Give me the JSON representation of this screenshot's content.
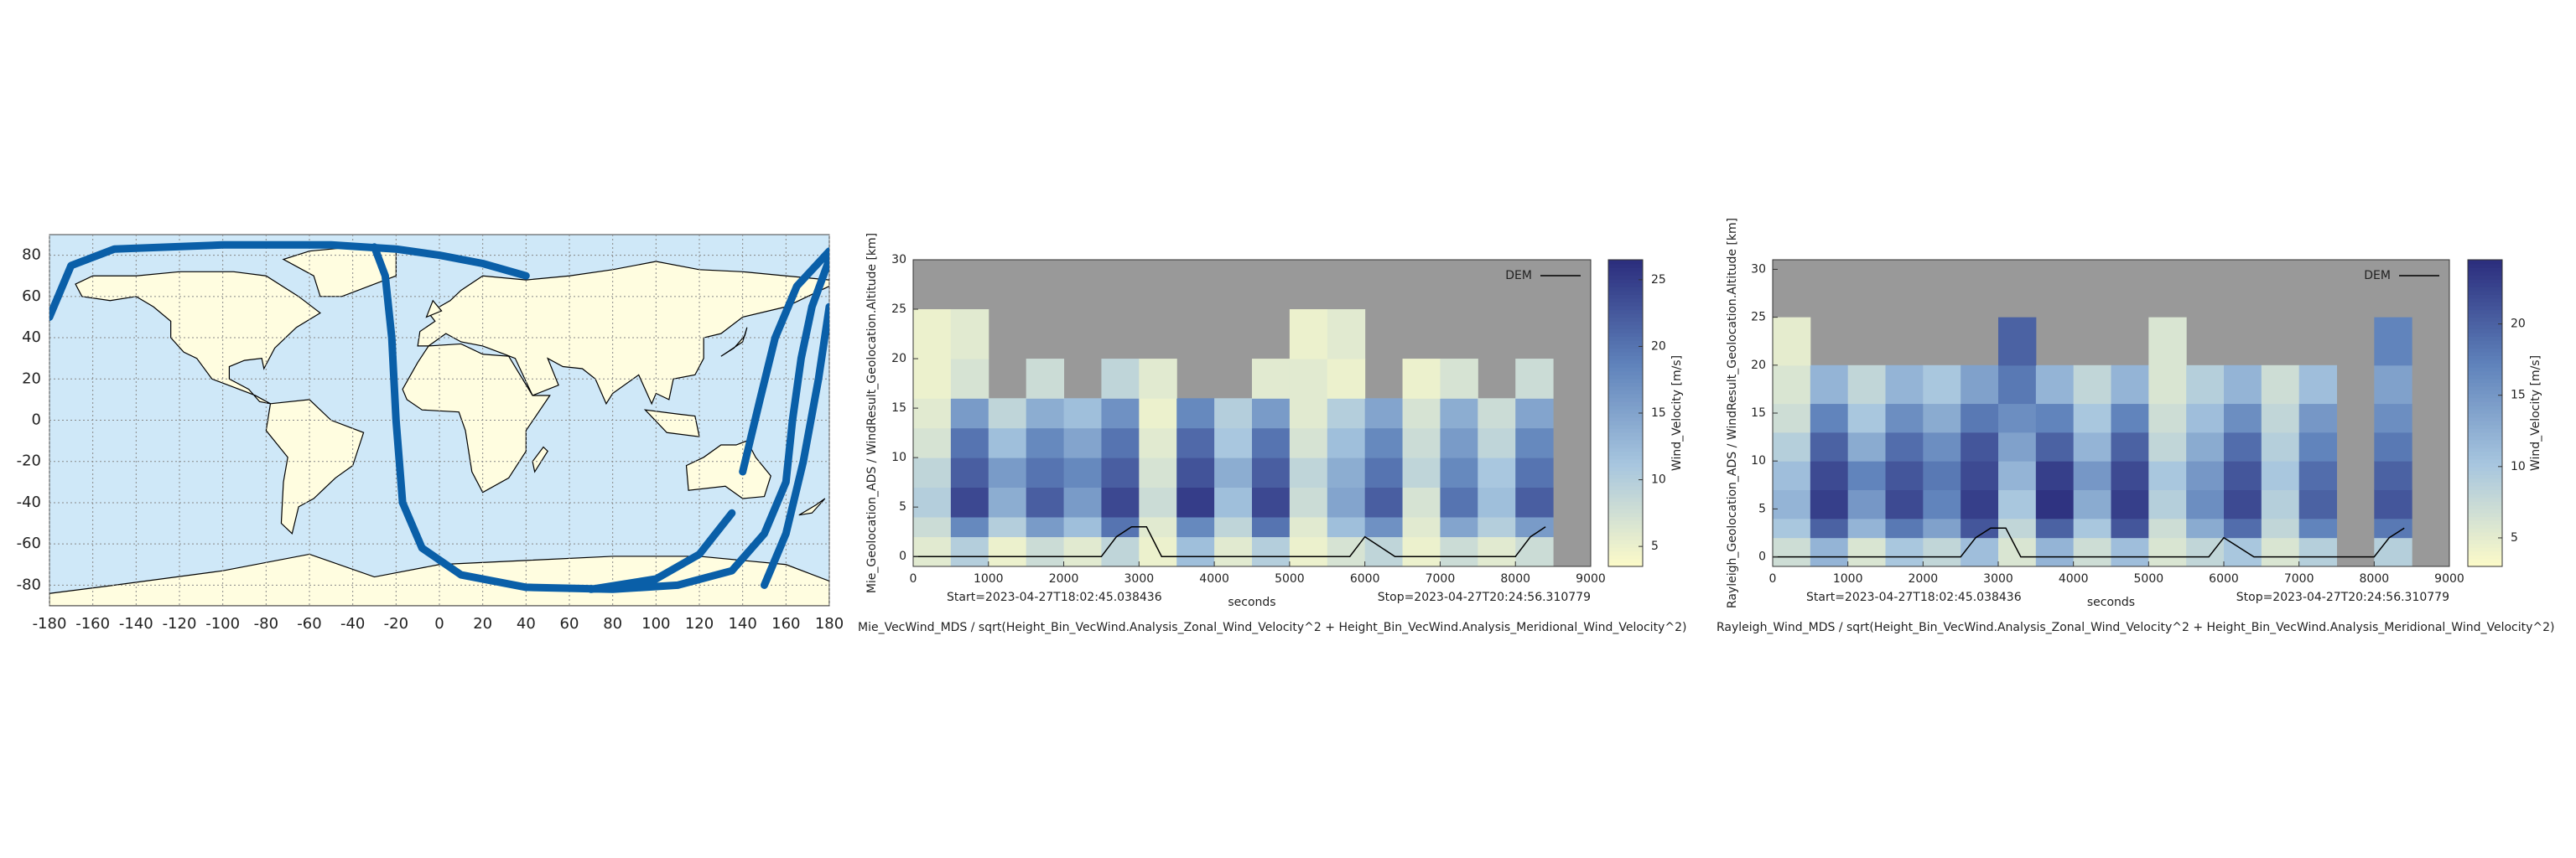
{
  "chart_data": [
    {
      "type": "map",
      "x": [
        -180,
        -170,
        -150,
        -100,
        -50,
        -20,
        0,
        20,
        40,
        null,
        -30,
        -25,
        -22,
        -20,
        -17,
        -8,
        10,
        40,
        80,
        110,
        135,
        150,
        160,
        163,
        167,
        172,
        180,
        null,
        135,
        120,
        100,
        70,
        null,
        140,
        148,
        155,
        165,
        180,
        null,
        180,
        175,
        168,
        160,
        150
      ],
      "values": [
        50,
        75,
        83,
        85,
        85,
        83,
        80,
        76,
        70,
        null,
        84,
        70,
        40,
        0,
        -40,
        -62,
        -75,
        -81,
        -82,
        -80,
        -73,
        -55,
        -30,
        0,
        30,
        55,
        78,
        null,
        -45,
        -65,
        -77,
        -82,
        null,
        -25,
        10,
        40,
        65,
        82,
        null,
        55,
        20,
        -20,
        -55,
        -80
      ],
      "color": "#0a5fa8",
      "xlim": [
        -180,
        180
      ],
      "ylim": [
        -90,
        90
      ],
      "xticks": [
        -180,
        -160,
        -140,
        -120,
        -100,
        -80,
        -60,
        -40,
        -20,
        0,
        20,
        40,
        60,
        80,
        100,
        120,
        140,
        160,
        180
      ],
      "yticks": [
        -80,
        -60,
        -40,
        -20,
        0,
        20,
        40,
        60,
        80
      ],
      "grid": true
    },
    {
      "type": "heatmap",
      "title": "Mie_VecWind_MDS / sqrt(Height_Bin_VecWind.Analysis_Zonal_Wind_Velocity^2 + Height_Bin_VecWind.Analysis_Meridional_Wind_Velocity^2)",
      "ylabel": "Mie_Geolocation_ADS / WindResult_Geolocation.Altitude [km]",
      "xlabel": "seconds",
      "start": "Start=2023-04-27T18:02:45.038436",
      "stop": "Stop=2023-04-27T20:24:56.310779",
      "colorbar_label": "Wind_Velocity [m/s]",
      "x": [
        0,
        500,
        1000,
        1500,
        2000,
        2500,
        3000,
        3500,
        4000,
        4500,
        5000,
        5500,
        6000,
        6500,
        7000,
        7500,
        8000,
        8500
      ],
      "y": [
        -1,
        2,
        4,
        7,
        10,
        13,
        16,
        20,
        25
      ],
      "values": [
        [
          6,
          10,
          5,
          8,
          6,
          9,
          5,
          12,
          6,
          10,
          5,
          7,
          9,
          5,
          8,
          6,
          8
        ],
        [
          8,
          18,
          10,
          16,
          12,
          20,
          6,
          18,
          9,
          20,
          6,
          12,
          17,
          6,
          15,
          10,
          16
        ],
        [
          10,
          24,
          14,
          22,
          16,
          24,
          8,
          25,
          12,
          24,
          8,
          15,
          22,
          7,
          20,
          12,
          22
        ],
        [
          9,
          22,
          16,
          20,
          18,
          22,
          7,
          23,
          14,
          22,
          9,
          14,
          20,
          9,
          18,
          11,
          20
        ],
        [
          7,
          20,
          12,
          18,
          15,
          20,
          6,
          21,
          11,
          20,
          7,
          12,
          18,
          8,
          16,
          9,
          18
        ],
        [
          6,
          16,
          9,
          14,
          12,
          17,
          5,
          18,
          10,
          16,
          6,
          10,
          15,
          7,
          14,
          8,
          15
        ],
        [
          5,
          7,
          null,
          8,
          null,
          9,
          6,
          null,
          null,
          6,
          6,
          5,
          null,
          5,
          7,
          null,
          8
        ],
        [
          5,
          6,
          null,
          null,
          null,
          null,
          null,
          null,
          null,
          null,
          5,
          6,
          null,
          null,
          null,
          null,
          null
        ]
      ],
      "xlim": [
        0,
        9000
      ],
      "ylim": [
        -1,
        30
      ],
      "xticks": [
        0,
        1000,
        2000,
        3000,
        4000,
        5000,
        6000,
        7000,
        8000,
        9000
      ],
      "yticks": [
        0,
        5,
        10,
        15,
        20,
        25,
        30
      ],
      "clim": [
        3.5,
        26.5
      ],
      "cticks": [
        5,
        10,
        15,
        20,
        25
      ],
      "colormap": [
        "#fdfbc8",
        "#a7c6df",
        "#5e81ba",
        "#2b2d7d"
      ],
      "nodata_color": "#999999",
      "dem": {
        "name": "DEM",
        "color": "#000000",
        "x": [
          0,
          1000,
          2500,
          2700,
          2900,
          3100,
          3300,
          5800,
          6000,
          6200,
          6400,
          7600,
          8000,
          8200,
          8400
        ],
        "values": [
          0,
          0,
          0,
          2,
          3,
          3,
          0,
          0,
          2,
          1,
          0,
          0,
          0,
          2,
          3
        ]
      }
    },
    {
      "type": "heatmap",
      "title": "Rayleigh_Wind_MDS / sqrt(Height_Bin_VecWind.Analysis_Zonal_Wind_Velocity^2 + Height_Bin_VecWind.Analysis_Meridional_Wind_Velocity^2)",
      "ylabel": "Rayleigh_Geolocation_ADS / WindResult_Geolocation.Altitude [km]",
      "xlabel": "seconds",
      "start": "Start=2023-04-27T18:02:45.038436",
      "stop": "Stop=2023-04-27T20:24:56.310779",
      "colorbar_label": "Wind_Velocity [m/s]",
      "x": [
        0,
        500,
        1000,
        1500,
        2000,
        2500,
        3000,
        3500,
        4000,
        4500,
        5000,
        5500,
        6000,
        6500,
        7000,
        7500,
        8000,
        8500
      ],
      "y": [
        -1,
        2,
        4,
        7,
        10,
        13,
        16,
        20,
        25
      ],
      "values": [
        [
          7,
          12,
          6,
          10,
          8,
          11,
          6,
          12,
          7,
          11,
          6,
          8,
          10,
          6,
          9,
          null,
          9
        ],
        [
          10,
          20,
          12,
          18,
          14,
          21,
          8,
          20,
          10,
          21,
          7,
          13,
          19,
          8,
          17,
          null,
          18
        ],
        [
          12,
          23,
          15,
          22,
          17,
          23,
          10,
          24,
          13,
          23,
          9,
          16,
          22,
          9,
          20,
          null,
          21
        ],
        [
          11,
          22,
          17,
          21,
          18,
          22,
          12,
          23,
          15,
          22,
          10,
          15,
          21,
          10,
          19,
          null,
          20
        ],
        [
          9,
          20,
          13,
          19,
          16,
          21,
          14,
          20,
          12,
          20,
          8,
          13,
          19,
          9,
          17,
          null,
          18
        ],
        [
          7,
          17,
          10,
          16,
          13,
          18,
          16,
          17,
          10,
          17,
          7,
          11,
          16,
          8,
          15,
          null,
          16
        ],
        [
          6,
          12,
          8,
          12,
          10,
          14,
          18,
          12,
          8,
          12,
          6,
          9,
          12,
          7,
          11,
          null,
          14
        ],
        [
          5,
          null,
          null,
          null,
          null,
          null,
          20,
          null,
          null,
          null,
          6,
          null,
          null,
          null,
          null,
          null,
          17
        ]
      ],
      "xlim": [
        0,
        9000
      ],
      "ylim": [
        -1,
        31
      ],
      "xticks": [
        0,
        1000,
        2000,
        3000,
        4000,
        5000,
        6000,
        7000,
        8000,
        9000
      ],
      "yticks": [
        0,
        5,
        10,
        15,
        20,
        25,
        30
      ],
      "clim": [
        3,
        24.5
      ],
      "cticks": [
        5,
        10,
        15,
        20
      ],
      "colormap": [
        "#fdfbc8",
        "#a7c6df",
        "#5e81ba",
        "#2b2d7d"
      ],
      "nodata_color": "#999999",
      "dem": {
        "name": "DEM",
        "color": "#000000",
        "x": [
          0,
          1000,
          2500,
          2700,
          2900,
          3100,
          3300,
          5800,
          6000,
          6200,
          6400,
          7600,
          8000,
          8200,
          8400
        ],
        "values": [
          0,
          0,
          0,
          2,
          3,
          3,
          0,
          0,
          2,
          1,
          0,
          0,
          0,
          2,
          3
        ]
      }
    }
  ]
}
